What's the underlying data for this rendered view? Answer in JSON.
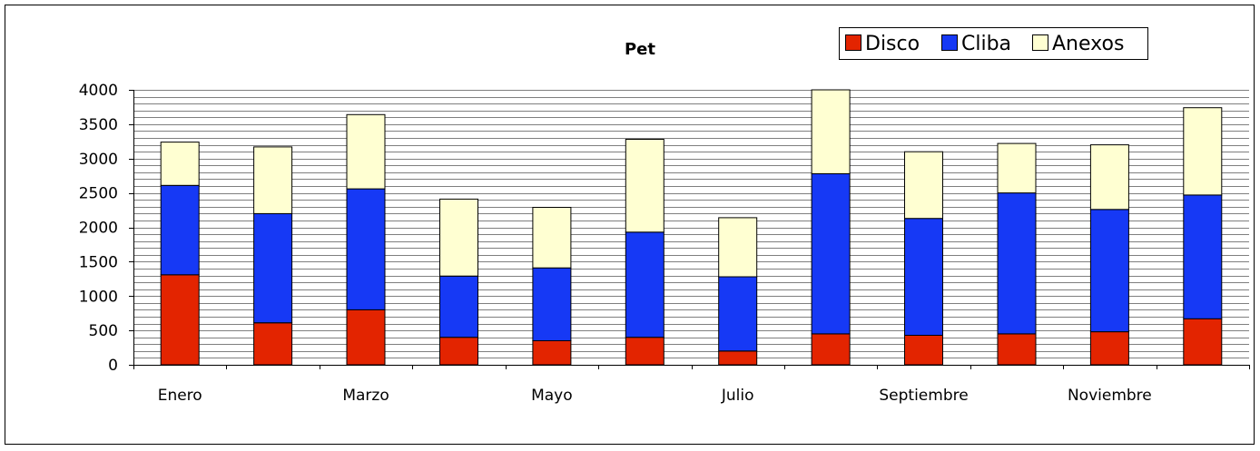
{
  "chart_data": {
    "type": "bar",
    "stacked": true,
    "title": "Pet",
    "xlabel": "",
    "ylabel": "",
    "ylim": [
      0,
      4000
    ],
    "yticks": [
      0,
      500,
      1000,
      1500,
      2000,
      2500,
      3000,
      3500,
      4000
    ],
    "minor_gridline_step": 100,
    "grid": true,
    "legend_position": "top-right",
    "categories": [
      "Enero",
      "",
      "Marzo",
      "",
      "Mayo",
      "",
      "Julio",
      "",
      "Septiembre",
      "",
      "Noviembre",
      ""
    ],
    "series": [
      {
        "name": "Disco",
        "color": "#e32400",
        "values": [
          1310,
          610,
          800,
          400,
          350,
          400,
          200,
          450,
          430,
          450,
          480,
          670
        ]
      },
      {
        "name": "Cliba",
        "color": "#1639f5",
        "values": [
          1300,
          1590,
          1760,
          890,
          1060,
          1530,
          1080,
          2330,
          1700,
          2050,
          1780,
          1800
        ]
      },
      {
        "name": "Anexos",
        "color": "#ffffd2",
        "values": [
          630,
          970,
          1080,
          1120,
          880,
          1350,
          860,
          1220,
          970,
          720,
          940,
          1270
        ]
      }
    ]
  }
}
